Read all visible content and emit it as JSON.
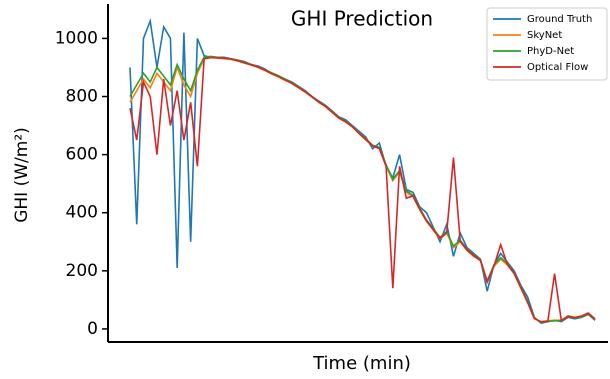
{
  "chart_data": {
    "type": "line",
    "title": "GHI Prediction",
    "x_label": "Time (min)",
    "y_label": "GHI (W/m²)",
    "ylim": [
      -45,
      1115
    ],
    "yticks": [
      0,
      200,
      400,
      600,
      800,
      1000
    ],
    "series": [
      {
        "name": "Ground Truth",
        "color": "#1f77b4",
        "values": [
          900,
          360,
          1000,
          1060,
          900,
          1040,
          1000,
          210,
          1020,
          300,
          1000,
          940,
          935,
          935,
          935,
          930,
          925,
          920,
          910,
          905,
          895,
          880,
          870,
          860,
          850,
          835,
          820,
          800,
          785,
          770,
          750,
          730,
          720,
          700,
          680,
          660,
          620,
          640,
          560,
          520,
          600,
          480,
          470,
          420,
          400,
          350,
          300,
          360,
          250,
          330,
          280,
          260,
          240,
          130,
          220,
          260,
          230,
          200,
          150,
          110,
          40,
          20,
          25,
          30,
          25,
          40,
          35,
          40,
          50,
          30
        ]
      },
      {
        "name": "SkyNet",
        "color": "#ff7f0e",
        "values": [
          780,
          820,
          860,
          830,
          880,
          850,
          820,
          900,
          840,
          800,
          880,
          930,
          935,
          932,
          930,
          928,
          922,
          915,
          908,
          900,
          890,
          878,
          868,
          856,
          845,
          830,
          815,
          798,
          780,
          765,
          745,
          725,
          712,
          695,
          672,
          650,
          630,
          620,
          560,
          510,
          540,
          470,
          455,
          410,
          370,
          340,
          310,
          330,
          280,
          300,
          270,
          250,
          235,
          160,
          215,
          240,
          220,
          190,
          140,
          90,
          35,
          25,
          28,
          30,
          30,
          45,
          40,
          45,
          55,
          35
        ]
      },
      {
        "name": "PhyD-Net",
        "color": "#2ca02c",
        "values": [
          800,
          840,
          880,
          850,
          900,
          870,
          840,
          910,
          860,
          820,
          890,
          935,
          938,
          935,
          932,
          930,
          925,
          918,
          910,
          902,
          893,
          882,
          872,
          860,
          848,
          833,
          818,
          800,
          783,
          768,
          748,
          728,
          715,
          698,
          675,
          655,
          632,
          625,
          565,
          515,
          545,
          475,
          460,
          415,
          375,
          345,
          315,
          335,
          285,
          305,
          275,
          255,
          238,
          165,
          220,
          245,
          225,
          195,
          145,
          95,
          38,
          22,
          26,
          28,
          28,
          42,
          38,
          42,
          52,
          32
        ]
      },
      {
        "name": "Optical Flow",
        "color": "#d62728",
        "values": [
          760,
          650,
          850,
          800,
          600,
          860,
          700,
          820,
          650,
          780,
          560,
          930,
          934,
          933,
          931,
          929,
          923,
          916,
          909,
          901,
          891,
          879,
          869,
          857,
          846,
          831,
          816,
          799,
          781,
          766,
          746,
          726,
          713,
          696,
          673,
          652,
          630,
          622,
          560,
          140,
          560,
          450,
          458,
          412,
          372,
          342,
          312,
          332,
          590,
          302,
          272,
          252,
          236,
          162,
          216,
          290,
          222,
          192,
          142,
          92,
          36,
          24,
          27,
          190,
          29,
          44,
          39,
          44,
          54,
          34
        ]
      }
    ]
  }
}
